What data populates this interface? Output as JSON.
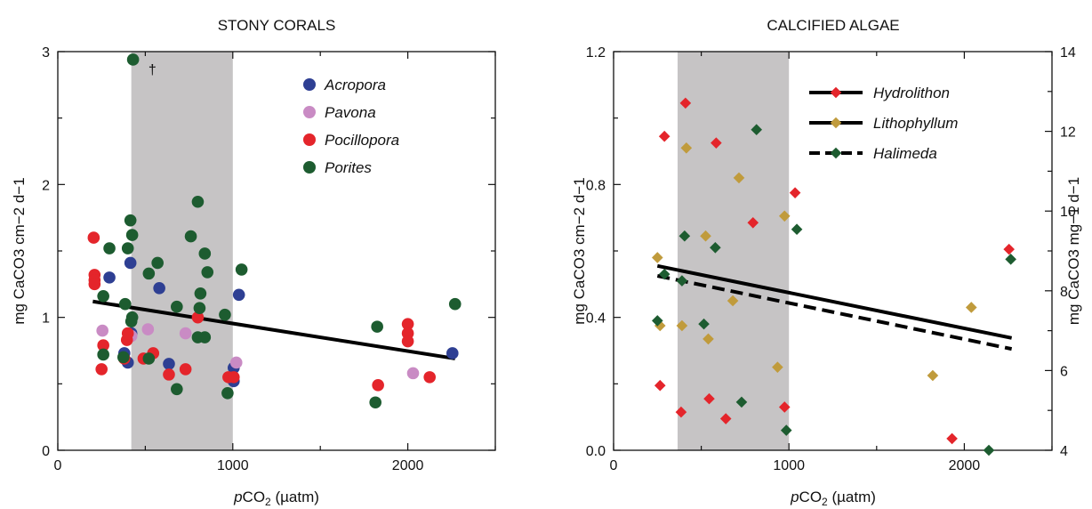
{
  "chart_data": [
    {
      "type": "scatter",
      "title": "STONY CORALS",
      "xlabel_prefix": "p",
      "xlabel_main": "CO",
      "xlabel_sub": "2",
      "xlabel_suffix": " (µatm)",
      "ylabel": "mg CaCO3 cm−2 d−1",
      "xlim": [
        0,
        2500
      ],
      "ylim": [
        0,
        3
      ],
      "x_ticks": [
        "0",
        "1000",
        "2000"
      ],
      "y_ticks": [
        "0",
        "1",
        "2",
        "3"
      ],
      "shaded_band": [
        420,
        1000
      ],
      "band_color": "#c6c4c5",
      "legend_position": "top-right",
      "annotation": {
        "text": "†",
        "x": 540,
        "y": 2.87
      },
      "trendline": {
        "x": [
          200,
          2270
        ],
        "y": [
          1.12,
          0.69
        ],
        "color": "#000000",
        "style": "solid"
      },
      "series": [
        {
          "name": "Acropora",
          "color": "#2e3f93",
          "points": [
            [
              400,
              0.66
            ],
            [
              380,
              0.73
            ],
            [
              420,
              0.88
            ],
            [
              295,
              1.3
            ],
            [
              415,
              1.41
            ],
            [
              580,
              1.22
            ],
            [
              635,
              0.65
            ],
            [
              1005,
              0.62
            ],
            [
              1005,
              0.52
            ],
            [
              1035,
              1.17
            ],
            [
              2255,
              0.73
            ]
          ]
        },
        {
          "name": "Pavona",
          "color": "#c98bc4",
          "points": [
            [
              255,
              0.9
            ],
            [
              420,
              0.86
            ],
            [
              515,
              0.91
            ],
            [
              730,
              0.88
            ],
            [
              1020,
              0.66
            ],
            [
              2030,
              0.58
            ]
          ]
        },
        {
          "name": "Pocillopora",
          "color": "#e4252b",
          "points": [
            [
              205,
              1.6
            ],
            [
              210,
              1.32
            ],
            [
              210,
              1.28
            ],
            [
              210,
              1.25
            ],
            [
              250,
              0.61
            ],
            [
              260,
              0.79
            ],
            [
              380,
              0.69
            ],
            [
              395,
              0.83
            ],
            [
              400,
              0.88
            ],
            [
              490,
              0.69
            ],
            [
              545,
              0.73
            ],
            [
              635,
              0.57
            ],
            [
              730,
              0.61
            ],
            [
              800,
              1.0
            ],
            [
              975,
              0.55
            ],
            [
              1005,
              0.55
            ],
            [
              1830,
              0.49
            ],
            [
              2000,
              0.95
            ],
            [
              2000,
              0.88
            ],
            [
              2000,
              0.82
            ],
            [
              2125,
              0.55
            ]
          ]
        },
        {
          "name": "Porites",
          "color": "#1d5c30",
          "points": [
            [
              430,
              2.94
            ],
            [
              260,
              0.72
            ],
            [
              260,
              1.16
            ],
            [
              295,
              1.52
            ],
            [
              375,
              0.7
            ],
            [
              385,
              1.1
            ],
            [
              400,
              1.52
            ],
            [
              415,
              1.73
            ],
            [
              425,
              1.62
            ],
            [
              420,
              0.97
            ],
            [
              425,
              1.0
            ],
            [
              520,
              0.69
            ],
            [
              520,
              1.33
            ],
            [
              570,
              1.41
            ],
            [
              680,
              0.46
            ],
            [
              680,
              1.08
            ],
            [
              760,
              1.61
            ],
            [
              800,
              1.87
            ],
            [
              800,
              0.85
            ],
            [
              810,
              1.07
            ],
            [
              815,
              1.18
            ],
            [
              840,
              0.85
            ],
            [
              840,
              1.48
            ],
            [
              855,
              1.34
            ],
            [
              955,
              1.02
            ],
            [
              970,
              0.43
            ],
            [
              1050,
              1.36
            ],
            [
              1815,
              0.36
            ],
            [
              1825,
              0.93
            ],
            [
              2270,
              1.1
            ]
          ]
        }
      ]
    },
    {
      "type": "scatter",
      "title": "CALCIFIED ALGAE",
      "xlabel_prefix": "p",
      "xlabel_main": "CO",
      "xlabel_sub": "2",
      "xlabel_suffix": " (µatm)",
      "ylabel": "mg CaCO3 cm−2 d−1",
      "ylabel_right": "mg CaCO3 mg−1 d−1",
      "xlim": [
        0,
        2500
      ],
      "ylim": [
        0,
        1.2
      ],
      "ylim_right": [
        4,
        14
      ],
      "x_ticks": [
        "0",
        "1000",
        "2000"
      ],
      "y_ticks": [
        "0.0",
        "0.4",
        "0.8",
        "1.2"
      ],
      "y_ticks_right": [
        "4",
        "6",
        "8",
        "10",
        "12",
        "14"
      ],
      "shaded_band": [
        365,
        1000
      ],
      "band_color": "#c6c4c5",
      "legend_position": "top-right",
      "trendlines": [
        {
          "name": "Hydrolithon",
          "x": [
            250,
            2270
          ],
          "y": [
            0.555,
            0.338
          ],
          "color": "#000000",
          "style": "solid"
        },
        {
          "name": "Halimeda",
          "x": [
            250,
            2270
          ],
          "y": [
            0.525,
            0.305
          ],
          "color": "#000000",
          "style": "dashed"
        }
      ],
      "series": [
        {
          "name": "Hydrolithon",
          "color": "#e4252b",
          "line_style": "solid",
          "points": [
            [
              265,
              0.195
            ],
            [
              290,
              0.945
            ],
            [
              385,
              0.115
            ],
            [
              410,
              1.045
            ],
            [
              545,
              0.155
            ],
            [
              585,
              0.925
            ],
            [
              640,
              0.095
            ],
            [
              795,
              0.685
            ],
            [
              975,
              0.13
            ],
            [
              1035,
              0.775
            ],
            [
              1930,
              0.035
            ],
            [
              2255,
              0.605
            ]
          ]
        },
        {
          "name": "Lithophyllum",
          "color": "#c09b3c",
          "line_style": "solid",
          "points": [
            [
              250,
              0.58
            ],
            [
              265,
              0.375
            ],
            [
              390,
              0.375
            ],
            [
              415,
              0.91
            ],
            [
              525,
              0.645
            ],
            [
              540,
              0.335
            ],
            [
              680,
              0.45
            ],
            [
              715,
              0.82
            ],
            [
              935,
              0.25
            ],
            [
              975,
              0.705
            ],
            [
              1820,
              0.225
            ],
            [
              2040,
              0.43
            ]
          ]
        },
        {
          "name": "Halimeda",
          "color": "#1d5c30",
          "line_style": "dashed",
          "points": [
            [
              250,
              0.39
            ],
            [
              290,
              0.53
            ],
            [
              390,
              0.51
            ],
            [
              405,
              0.645
            ],
            [
              515,
              0.38
            ],
            [
              580,
              0.61
            ],
            [
              730,
              0.145
            ],
            [
              815,
              0.965
            ],
            [
              985,
              0.06
            ],
            [
              1045,
              0.665
            ],
            [
              2140,
              0.0
            ],
            [
              2265,
              0.575
            ]
          ]
        }
      ]
    }
  ]
}
